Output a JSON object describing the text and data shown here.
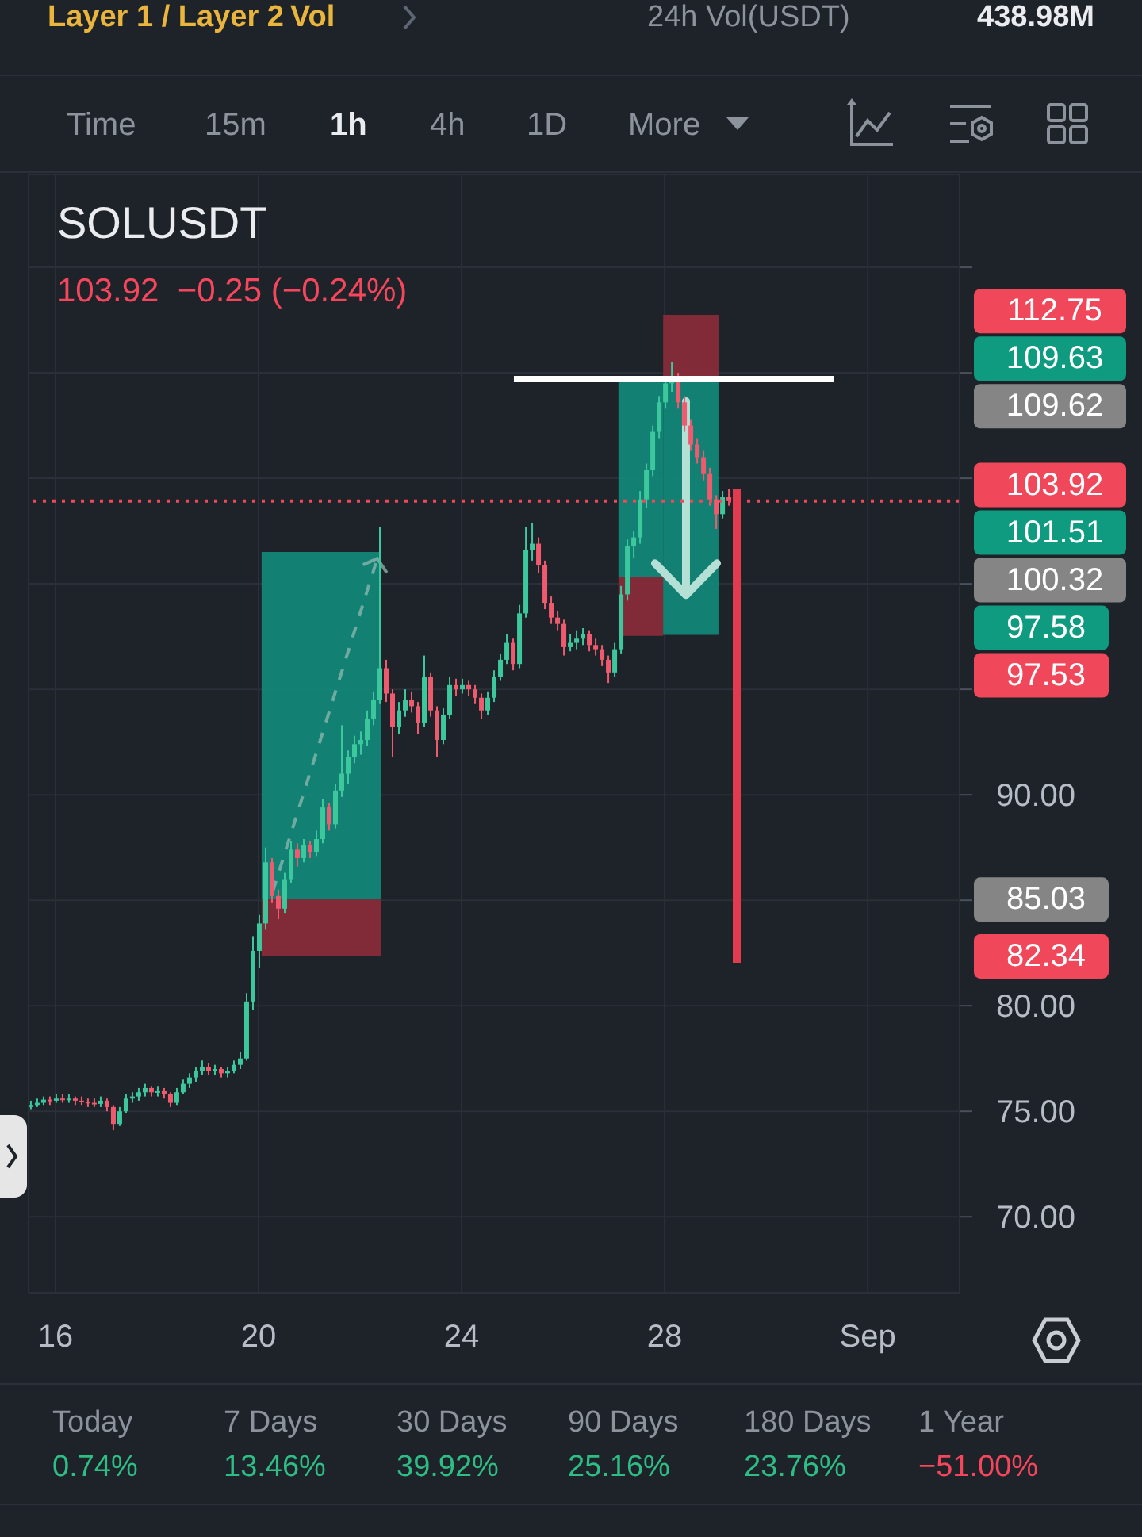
{
  "chart_data": {
    "type": "candlestick",
    "title": "SOLUSDT",
    "subtitle": "103.92  −0.25 (−0.24%)",
    "annotations": [
      "112.75",
      "109.63",
      "109.62",
      "101.51",
      "100.32",
      "97.58",
      "97.53",
      "85.03",
      "82.34",
      "Layer 1 / Layer 2",
      "Vol",
      "24h Vol(USDT)",
      "438.98M",
      "Time",
      "15m",
      "1h",
      "4h",
      "1D",
      "More",
      "Today",
      "0.74%",
      "7 Days",
      "13.46%",
      "30 Days",
      "39.92%",
      "90 Days",
      "25.16%",
      "180 Days",
      "23.76%",
      "1 Year",
      "−51.00%"
    ],
    "x": [
      15.5,
      15.625,
      15.75,
      15.875,
      16,
      16.125,
      16.25,
      16.375,
      16.5,
      16.625,
      16.75,
      16.875,
      17,
      17.125,
      17.25,
      17.375,
      17.5,
      17.625,
      17.75,
      17.875,
      18,
      18.125,
      18.25,
      18.375,
      18.5,
      18.625,
      18.75,
      18.875,
      19,
      19.125,
      19.25,
      19.375,
      19.5,
      19.625,
      19.75,
      19.875,
      20,
      20.125,
      20.25,
      20.375,
      20.5,
      20.625,
      20.75,
      20.875,
      21,
      21.125,
      21.25,
      21.375,
      21.5,
      21.625,
      21.75,
      21.875,
      22,
      22.125,
      22.25,
      22.375,
      22.5,
      22.625,
      22.75,
      22.875,
      23,
      23.125,
      23.25,
      23.375,
      23.5,
      23.625,
      23.75,
      23.875,
      24,
      24.125,
      24.25,
      24.375,
      24.5,
      24.625,
      24.75,
      24.875,
      25,
      25.125,
      25.25,
      25.375,
      25.5,
      25.625,
      25.75,
      25.875,
      26,
      26.125,
      26.25,
      26.375,
      26.5,
      26.625,
      26.75,
      26.875,
      27,
      27.125,
      27.25,
      27.375,
      27.5,
      27.625,
      27.75,
      27.875,
      28,
      28.125,
      28.25,
      28.375,
      28.5,
      28.625,
      28.75,
      28.875,
      29,
      29.125,
      29.25
    ],
    "ohlc": [
      [
        75.2,
        75.5,
        75.1,
        75.3
      ],
      [
        75.3,
        75.6,
        75.2,
        75.4
      ],
      [
        75.4,
        75.7,
        75.3,
        75.55
      ],
      [
        75.55,
        75.7,
        75.3,
        75.5
      ],
      [
        75.5,
        75.8,
        75.4,
        75.6
      ],
      [
        75.6,
        75.8,
        75.4,
        75.55
      ],
      [
        75.55,
        75.8,
        75.4,
        75.6
      ],
      [
        75.6,
        75.7,
        75.3,
        75.5
      ],
      [
        75.5,
        75.7,
        75.3,
        75.45
      ],
      [
        75.45,
        75.6,
        75.2,
        75.4
      ],
      [
        75.4,
        75.6,
        75.2,
        75.35
      ],
      [
        75.35,
        75.7,
        75.2,
        75.5
      ],
      [
        75.5,
        75.6,
        75.0,
        75.2
      ],
      [
        75.2,
        75.3,
        74.1,
        74.4
      ],
      [
        74.4,
        75.2,
        74.3,
        75.0
      ],
      [
        75.0,
        75.8,
        74.9,
        75.6
      ],
      [
        75.6,
        75.9,
        75.4,
        75.7
      ],
      [
        75.7,
        76.1,
        75.5,
        75.9
      ],
      [
        75.9,
        76.3,
        75.7,
        76.1
      ],
      [
        76.1,
        76.2,
        75.7,
        75.9
      ],
      [
        75.9,
        76.2,
        75.7,
        75.95
      ],
      [
        75.95,
        76.1,
        75.6,
        75.8
      ],
      [
        75.8,
        75.9,
        75.2,
        75.4
      ],
      [
        75.4,
        76.1,
        75.3,
        75.9
      ],
      [
        75.9,
        76.5,
        75.8,
        76.3
      ],
      [
        76.3,
        76.8,
        76.1,
        76.6
      ],
      [
        76.6,
        77.1,
        76.4,
        76.9
      ],
      [
        76.9,
        77.4,
        76.7,
        77.1
      ],
      [
        77.1,
        77.3,
        76.7,
        76.9
      ],
      [
        76.9,
        77.2,
        76.7,
        77.0
      ],
      [
        77.0,
        77.1,
        76.6,
        76.8
      ],
      [
        76.8,
        77.1,
        76.6,
        76.9
      ],
      [
        76.9,
        77.4,
        76.8,
        77.2
      ],
      [
        77.2,
        77.8,
        77.0,
        77.5
      ],
      [
        77.5,
        80.6,
        77.4,
        80.2
      ],
      [
        80.2,
        83.3,
        79.8,
        82.6
      ],
      [
        82.6,
        84.3,
        81.8,
        83.9
      ],
      [
        83.9,
        87.5,
        83.6,
        86.8
      ],
      [
        86.8,
        87.0,
        84.9,
        85.2
      ],
      [
        85.2,
        85.5,
        84.1,
        84.6
      ],
      [
        84.6,
        86.3,
        84.4,
        86.0
      ],
      [
        86.0,
        87.8,
        85.8,
        87.4
      ],
      [
        87.4,
        87.7,
        86.6,
        87.0
      ],
      [
        87.0,
        87.9,
        86.8,
        87.6
      ],
      [
        87.6,
        87.8,
        87.0,
        87.3
      ],
      [
        87.3,
        88.3,
        87.1,
        87.9
      ],
      [
        87.9,
        89.8,
        87.7,
        89.4
      ],
      [
        89.4,
        89.6,
        88.3,
        88.6
      ],
      [
        88.6,
        90.5,
        88.4,
        90.2
      ],
      [
        90.2,
        93.3,
        89.9,
        91.0
      ],
      [
        91.0,
        92.1,
        90.5,
        91.8
      ],
      [
        91.8,
        92.8,
        91.5,
        92.4
      ],
      [
        92.4,
        93.0,
        91.9,
        92.6
      ],
      [
        92.6,
        94.0,
        92.3,
        93.6
      ],
      [
        93.6,
        94.9,
        93.3,
        94.5
      ],
      [
        94.5,
        102.7,
        94.3,
        96.0
      ],
      [
        96.0,
        96.4,
        94.4,
        94.8
      ],
      [
        94.8,
        95.0,
        91.8,
        93.2
      ],
      [
        93.2,
        94.4,
        92.9,
        94.0
      ],
      [
        94.0,
        95.0,
        93.7,
        94.5
      ],
      [
        94.5,
        94.9,
        93.9,
        94.2
      ],
      [
        94.2,
        94.4,
        92.9,
        93.4
      ],
      [
        93.4,
        96.6,
        93.2,
        95.6
      ],
      [
        95.6,
        95.8,
        93.7,
        94.0
      ],
      [
        94.0,
        94.2,
        91.8,
        92.6
      ],
      [
        92.6,
        94.1,
        92.4,
        93.8
      ],
      [
        93.8,
        95.6,
        93.6,
        95.2
      ],
      [
        95.2,
        95.5,
        94.7,
        95.0
      ],
      [
        95.0,
        95.5,
        94.8,
        95.2
      ],
      [
        95.2,
        95.4,
        94.7,
        95.0
      ],
      [
        95.0,
        95.2,
        94.3,
        94.6
      ],
      [
        94.6,
        94.8,
        93.6,
        94.0
      ],
      [
        94.0,
        94.9,
        93.8,
        94.6
      ],
      [
        94.6,
        95.9,
        94.4,
        95.6
      ],
      [
        95.6,
        96.7,
        95.4,
        96.4
      ],
      [
        96.4,
        97.6,
        96.2,
        97.2
      ],
      [
        97.2,
        97.4,
        95.9,
        96.2
      ],
      [
        96.2,
        99.0,
        96.0,
        98.6
      ],
      [
        98.6,
        102.7,
        98.4,
        101.6
      ],
      [
        101.6,
        102.9,
        101.1,
        101.9
      ],
      [
        101.9,
        102.2,
        100.5,
        100.9
      ],
      [
        100.9,
        101.1,
        98.8,
        99.1
      ],
      [
        99.1,
        99.4,
        98.1,
        98.4
      ],
      [
        98.4,
        98.7,
        97.8,
        98.1
      ],
      [
        98.1,
        98.3,
        96.6,
        97.0
      ],
      [
        97.0,
        97.6,
        96.8,
        97.2
      ],
      [
        97.2,
        97.8,
        96.9,
        97.4
      ],
      [
        97.4,
        97.9,
        97.1,
        97.6
      ],
      [
        97.6,
        97.8,
        96.8,
        97.1
      ],
      [
        97.1,
        97.4,
        96.6,
        96.9
      ],
      [
        96.9,
        97.1,
        96.1,
        96.4
      ],
      [
        96.4,
        96.6,
        95.3,
        95.8
      ],
      [
        95.8,
        97.2,
        95.6,
        96.9
      ],
      [
        96.9,
        99.9,
        96.7,
        99.5
      ],
      [
        99.5,
        102.1,
        99.2,
        101.8
      ],
      [
        101.8,
        102.5,
        101.2,
        102.2
      ],
      [
        102.2,
        104.4,
        101.9,
        104.0
      ],
      [
        104.0,
        105.7,
        103.6,
        105.4
      ],
      [
        105.4,
        107.5,
        105.1,
        107.2
      ],
      [
        107.2,
        108.9,
        106.9,
        108.6
      ],
      [
        108.6,
        109.8,
        108.3,
        109.5
      ],
      [
        109.5,
        110.5,
        109.1,
        109.8
      ],
      [
        109.8,
        110.0,
        108.3,
        108.6
      ],
      [
        108.6,
        108.9,
        107.2,
        107.5
      ],
      [
        107.5,
        107.8,
        106.3,
        106.6
      ],
      [
        106.6,
        106.9,
        105.7,
        106.0
      ],
      [
        106.0,
        106.3,
        104.9,
        105.2
      ],
      [
        105.2,
        105.5,
        103.7,
        104.0
      ],
      [
        104.0,
        104.2,
        102.6,
        103.3
      ],
      [
        103.3,
        104.4,
        103.1,
        104.1
      ],
      [
        104.1,
        104.5,
        103.7,
        103.92
      ]
    ],
    "series": [
      {
        "type": "line",
        "x": [
          25.03,
          31.34
        ],
        "values": [
          109.7,
          109.7
        ],
        "color": "#ffffff"
      }
    ],
    "xlim": [
      15.47,
      33.81
    ],
    "xticks": [
      16,
      20,
      24,
      28,
      {
        "value": 32,
        "label": "Sep"
      }
    ],
    "ylim": [
      66.4,
      119.4
    ],
    "yticks": [
      {
        "value": 70,
        "label": "70.00"
      },
      {
        "value": 75,
        "label": "75.00"
      },
      {
        "value": 80,
        "label": "80.00"
      },
      {
        "value": 85,
        "label": null
      },
      {
        "value": 90,
        "label": "90.00"
      },
      {
        "value": 95,
        "label": null
      },
      {
        "value": 100,
        "label": null
      },
      {
        "value": 105,
        "label": null
      },
      {
        "value": 110,
        "label": null
      },
      {
        "value": 115,
        "label": null
      }
    ],
    "grid": true,
    "ref_lines": [
      {
        "axis": "y",
        "value": 103.92,
        "label": "103.92",
        "color": "#f0485a",
        "line_style": "dotted"
      }
    ],
    "bands": [
      {
        "axis": "y",
        "from": 85.03,
        "to": 101.51,
        "color": "#118a7a"
      },
      {
        "axis": "y",
        "from": 82.34,
        "to": 85.03,
        "color": "#8a2d3b"
      },
      {
        "axis": "y",
        "from": 100.32,
        "to": 109.63,
        "color": "#118a7a"
      },
      {
        "axis": "y",
        "from": 97.53,
        "to": 100.32,
        "color": "#8a2d3b"
      },
      {
        "axis": "y",
        "from": 97.58,
        "to": 109.62,
        "color": "#118a7a"
      },
      {
        "axis": "y",
        "from": 109.62,
        "to": 112.75,
        "color": "#8a2d3b"
      }
    ]
  }
}
